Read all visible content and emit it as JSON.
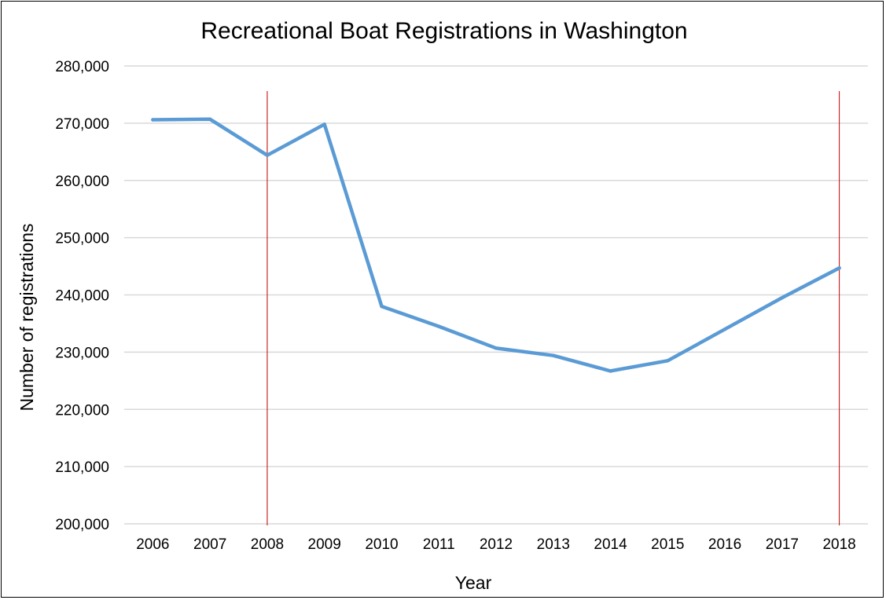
{
  "chart_data": {
    "type": "line",
    "title": "Recreational Boat Registrations in Washington",
    "xlabel": "Year",
    "ylabel": "Number of registrations",
    "categories": [
      "2006",
      "2007",
      "2008",
      "2009",
      "2010",
      "2011",
      "2012",
      "2013",
      "2014",
      "2015",
      "2016",
      "2017",
      "2018"
    ],
    "series": [
      {
        "values": [
          270600,
          270700,
          264400,
          269800,
          238000,
          234500,
          230700,
          229400,
          226700,
          228500,
          234000,
          239500,
          244700
        ],
        "color": "#5b9bd5"
      }
    ],
    "ylim": [
      200000,
      280000
    ],
    "yticks": [
      200000,
      210000,
      220000,
      230000,
      240000,
      250000,
      260000,
      270000,
      280000
    ],
    "ytick_labels": [
      "200,000",
      "210,000",
      "220,000",
      "230,000",
      "240,000",
      "250,000",
      "260,000",
      "270,000",
      "280,000"
    ],
    "grid": "horizontal",
    "gridline_color": "#d9d9d9",
    "markers": [
      {
        "x": "2008",
        "color": "#c00000"
      },
      {
        "x": "2018",
        "color": "#c00000"
      }
    ]
  }
}
